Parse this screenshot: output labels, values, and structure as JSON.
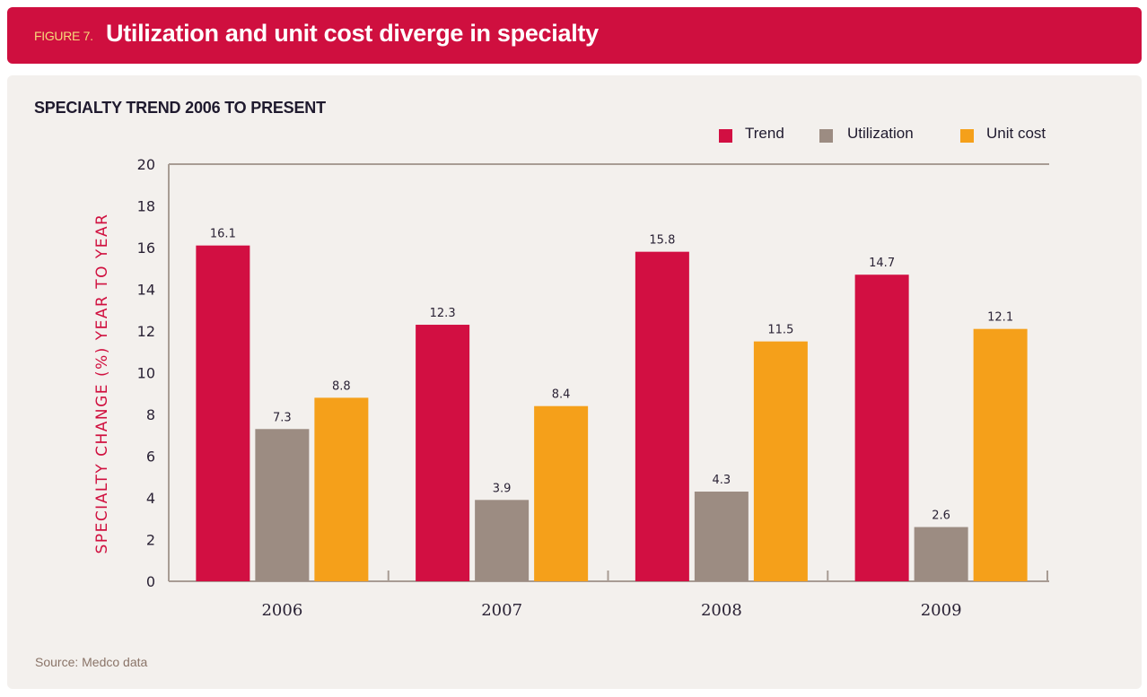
{
  "header": {
    "figure_label": "FIGURE 7.",
    "title": "Utilization and unit cost diverge in specialty"
  },
  "source": "Source: Medco data",
  "colors": {
    "header_bg": "#cf0f3f",
    "panel_bg": "#f3f0ed",
    "trend": "#d20f42",
    "utilization": "#9c8c82",
    "unit_cost": "#f5a01a",
    "axis": "#a89c94",
    "ylabel": "#d0103f"
  },
  "chart_data": {
    "type": "bar",
    "title": "SPECIALTY TREND 2006 TO PRESENT",
    "xlabel": "",
    "ylabel": "SPECIALTY CHANGE (%) YEAR TO YEAR",
    "ylim": [
      0,
      20
    ],
    "yticks": [
      0,
      2,
      4,
      6,
      8,
      10,
      12,
      14,
      16,
      18,
      20
    ],
    "grid": false,
    "legend_position": "top-right",
    "categories": [
      "2006",
      "2007",
      "2008",
      "2009"
    ],
    "series": [
      {
        "name": "Trend",
        "color_key": "trend",
        "values": [
          16.1,
          12.3,
          15.8,
          14.7
        ],
        "labels": [
          "16.1",
          "12.3",
          "15.8",
          "14.7"
        ]
      },
      {
        "name": "Utilization",
        "color_key": "utilization",
        "values": [
          7.3,
          3.9,
          4.3,
          2.6
        ],
        "labels": [
          "7.3",
          "3.9",
          "4.3",
          "2.6"
        ]
      },
      {
        "name": "Unit cost",
        "color_key": "unit_cost",
        "values": [
          8.8,
          8.4,
          11.5,
          12.1
        ],
        "labels": [
          "8.8",
          "8.4",
          "11.5",
          "12.1"
        ]
      }
    ]
  }
}
